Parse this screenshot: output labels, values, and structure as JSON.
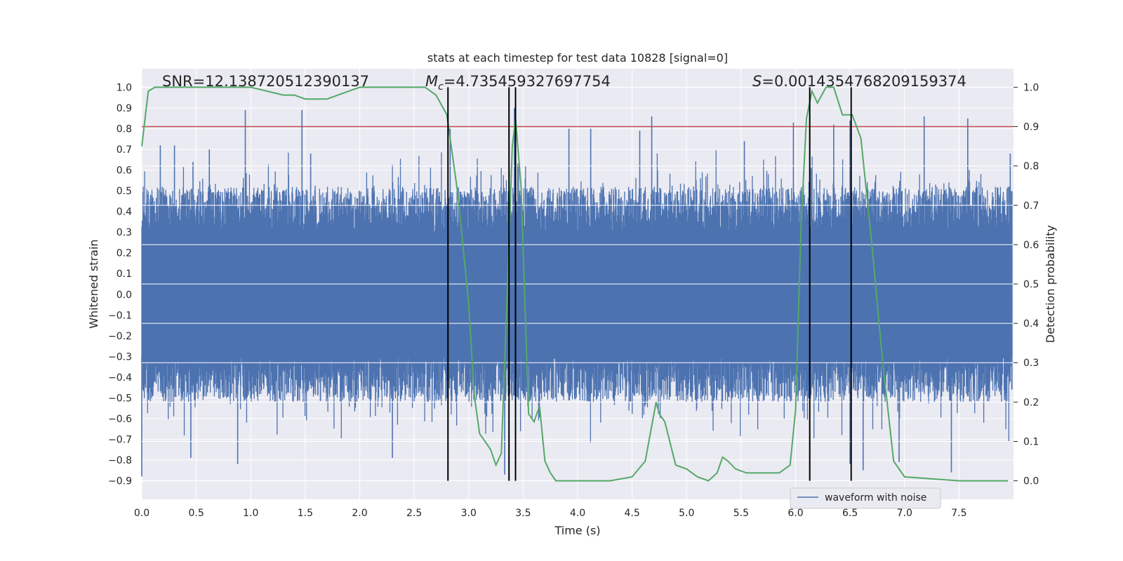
{
  "chart_data": {
    "type": "line",
    "title": "stats at each timestep for test data 10828 [signal=0]",
    "xlabel": "Time (s)",
    "ylabel": "Whitened strain",
    "ylabel_right": "Detection probability",
    "xlim": [
      0.0,
      8.0
    ],
    "ylim": [
      -0.99,
      1.09
    ],
    "ylim_right": [
      -0.047,
      1.047
    ],
    "x_ticks": [
      "0.0",
      "0.5",
      "1.0",
      "1.5",
      "2.0",
      "2.5",
      "3.0",
      "3.5",
      "4.0",
      "4.5",
      "5.0",
      "5.5",
      "6.0",
      "6.5",
      "7.0",
      "7.5"
    ],
    "x_tick_values": [
      0.0,
      0.5,
      1.0,
      1.5,
      2.0,
      2.5,
      3.0,
      3.5,
      4.0,
      4.5,
      5.0,
      5.5,
      6.0,
      6.5,
      7.0,
      7.5
    ],
    "y_ticks": [
      "1.0",
      "0.9",
      "0.8",
      "0.7",
      "0.6",
      "0.5",
      "0.4",
      "0.3",
      "0.2",
      "0.1",
      "0.0",
      "−0.1",
      "−0.2",
      "−0.3",
      "−0.4",
      "−0.5",
      "−0.6",
      "−0.7",
      "−0.8",
      "−0.9"
    ],
    "y_tick_values": [
      1.0,
      0.9,
      0.8,
      0.7,
      0.6,
      0.5,
      0.4,
      0.3,
      0.2,
      0.1,
      0.0,
      -0.1,
      -0.2,
      -0.3,
      -0.4,
      -0.5,
      -0.6,
      -0.7,
      -0.8,
      -0.9
    ],
    "y2_ticks": [
      "1.0",
      "0.9",
      "0.8",
      "0.7",
      "0.6",
      "0.5",
      "0.4",
      "0.3",
      "0.2",
      "0.1",
      "0.0"
    ],
    "y2_tick_values": [
      1.0,
      0.9,
      0.8,
      0.7,
      0.6,
      0.5,
      0.4,
      0.3,
      0.2,
      0.1,
      0.0
    ],
    "annotations": {
      "snr": "SNR=12.138720512390137",
      "mc_symbol": "M",
      "mc_sub": "c",
      "mc_value": "=4.735459327697754",
      "s_symbol": "S",
      "s_value": "=0.0014354768209159374"
    },
    "threshold": {
      "value": 0.9,
      "axis": "right",
      "color": "#c44e52"
    },
    "vertical_lines": [
      2.81,
      3.37,
      3.43,
      6.13,
      6.51
    ],
    "series": [
      {
        "name": "waveform with noise",
        "axis": "left",
        "color": "#4c72b0",
        "description": "dense noise band; envelope roughly +/-0.45 with spikes to ~0.9 and ~-0.85",
        "spikes": [
          {
            "x": 0.17,
            "y": 0.72
          },
          {
            "x": 0.3,
            "y": 0.72
          },
          {
            "x": 0.47,
            "y": 0.64
          },
          {
            "x": 0.62,
            "y": 0.7
          },
          {
            "x": 0.95,
            "y": 0.89
          },
          {
            "x": 1.47,
            "y": 0.89
          },
          {
            "x": 1.55,
            "y": 0.68
          },
          {
            "x": 2.83,
            "y": 0.8
          },
          {
            "x": 3.42,
            "y": 0.9
          },
          {
            "x": 3.92,
            "y": 0.8
          },
          {
            "x": 4.12,
            "y": 0.8
          },
          {
            "x": 4.57,
            "y": 0.79
          },
          {
            "x": 4.68,
            "y": 0.86
          },
          {
            "x": 5.53,
            "y": 0.74
          },
          {
            "x": 5.98,
            "y": 0.83
          },
          {
            "x": 6.35,
            "y": 0.82
          },
          {
            "x": 6.5,
            "y": 0.84
          },
          {
            "x": 7.18,
            "y": 0.86
          },
          {
            "x": 7.58,
            "y": 0.85
          },
          {
            "x": 7.97,
            "y": 0.68
          },
          {
            "x": 0.0,
            "y": -0.88
          },
          {
            "x": 0.45,
            "y": -0.79
          },
          {
            "x": 0.88,
            "y": -0.82
          },
          {
            "x": 2.3,
            "y": -0.79
          },
          {
            "x": 3.33,
            "y": -0.87
          },
          {
            "x": 6.5,
            "y": -0.82
          },
          {
            "x": 6.62,
            "y": -0.85
          },
          {
            "x": 6.95,
            "y": -0.81
          },
          {
            "x": 7.43,
            "y": -0.86
          }
        ]
      },
      {
        "name": "detection probability",
        "axis": "right",
        "color": "#55a868",
        "x": [
          0.0,
          0.06,
          0.12,
          0.5,
          1.0,
          1.15,
          1.3,
          1.4,
          1.5,
          1.6,
          1.7,
          1.8,
          2.0,
          2.4,
          2.6,
          2.7,
          2.8,
          2.9,
          3.0,
          3.05,
          3.1,
          3.2,
          3.25,
          3.3,
          3.35,
          3.4,
          3.43,
          3.48,
          3.55,
          3.6,
          3.65,
          3.7,
          3.75,
          3.8,
          4.0,
          4.3,
          4.5,
          4.62,
          4.72,
          4.75,
          4.8,
          4.9,
          5.0,
          5.05,
          5.1,
          5.2,
          5.28,
          5.33,
          5.38,
          5.45,
          5.55,
          5.65,
          5.75,
          5.85,
          5.95,
          6.0,
          6.05,
          6.1,
          6.15,
          6.2,
          6.28,
          6.35,
          6.43,
          6.52,
          6.6,
          6.7,
          6.8,
          6.9,
          7.0,
          7.5,
          7.95
        ],
        "y": [
          0.85,
          0.99,
          1.0,
          1.0,
          1.0,
          0.99,
          0.98,
          0.98,
          0.97,
          0.97,
          0.97,
          0.98,
          1.0,
          1.0,
          1.0,
          0.98,
          0.93,
          0.73,
          0.45,
          0.22,
          0.12,
          0.08,
          0.04,
          0.07,
          0.45,
          0.85,
          0.92,
          0.75,
          0.17,
          0.15,
          0.19,
          0.05,
          0.02,
          0.0,
          0.0,
          0.0,
          0.01,
          0.05,
          0.2,
          0.17,
          0.15,
          0.04,
          0.03,
          0.02,
          0.01,
          0.0,
          0.02,
          0.06,
          0.05,
          0.03,
          0.02,
          0.02,
          0.02,
          0.02,
          0.04,
          0.18,
          0.65,
          0.92,
          0.99,
          0.96,
          1.0,
          1.0,
          0.93,
          0.93,
          0.87,
          0.6,
          0.3,
          0.05,
          0.01,
          0.0,
          0.0
        ]
      }
    ],
    "legend": {
      "entries": [
        "waveform with noise"
      ],
      "position": "lower-right"
    },
    "grid": true
  }
}
